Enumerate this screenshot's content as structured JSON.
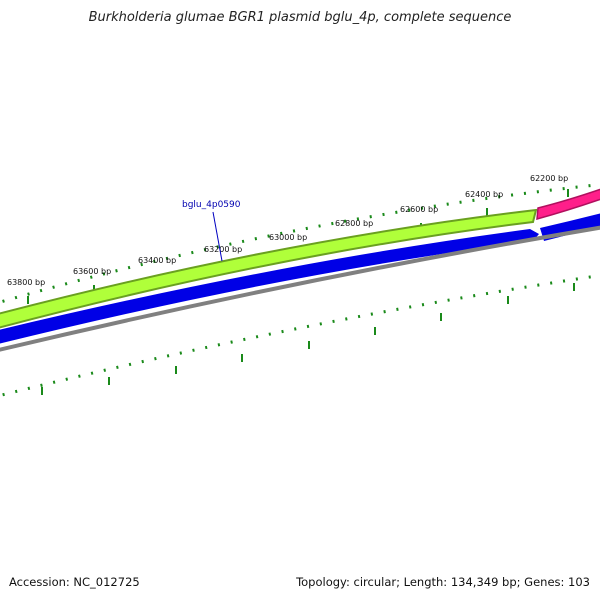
{
  "title": "Burkholderia glumae BGR1 plasmid bglu_4p, complete sequence",
  "footer": {
    "accession": "Accession: NC_012725",
    "topology": "Topology: circular; Length: 134,349 bp; Genes: 103"
  },
  "gene_label": "bglu_4p0590",
  "tick_labels": [
    "62200 bp",
    "62400 bp",
    "62600 bp",
    "62800 bp",
    "63000 bp",
    "63200 bp",
    "63400 bp",
    "63600 bp",
    "63800 bp"
  ],
  "colors": {
    "tick": "#1a8a1a",
    "gene_fill": "#b0ff3a",
    "gene_border": "#6aa020",
    "gene_pink": "#ff1f8a",
    "cds": "#0000e6",
    "backbone": "#808080",
    "label_line": "#0000c0"
  }
}
